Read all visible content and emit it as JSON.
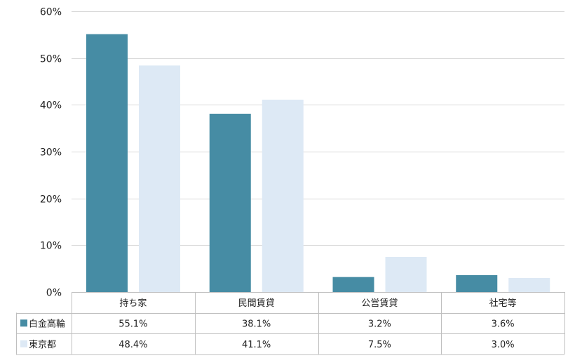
{
  "chart_data": {
    "type": "bar",
    "categories": [
      "持ち家",
      "民間賃貸",
      "公営賃貸",
      "社宅等"
    ],
    "series": [
      {
        "name": "白金高輪",
        "values": [
          55.1,
          38.1,
          3.2,
          3.6
        ],
        "labels": [
          "55.1%",
          "38.1%",
          "3.2%",
          "3.6%"
        ],
        "color": "#468ca4"
      },
      {
        "name": "東京都",
        "values": [
          48.4,
          41.1,
          7.5,
          3.0
        ],
        "labels": [
          "48.4%",
          "41.1%",
          "7.5%",
          "3.0%"
        ],
        "color": "#dde9f5"
      }
    ],
    "ylim": [
      0,
      60
    ],
    "yticks": [
      0,
      10,
      20,
      30,
      40,
      50,
      60
    ],
    "ytick_labels": [
      "0%",
      "10%",
      "20%",
      "30%",
      "40%",
      "50%",
      "60%"
    ],
    "grid": true,
    "legend": "data-table-left",
    "title": "",
    "xlabel": "",
    "ylabel": ""
  }
}
